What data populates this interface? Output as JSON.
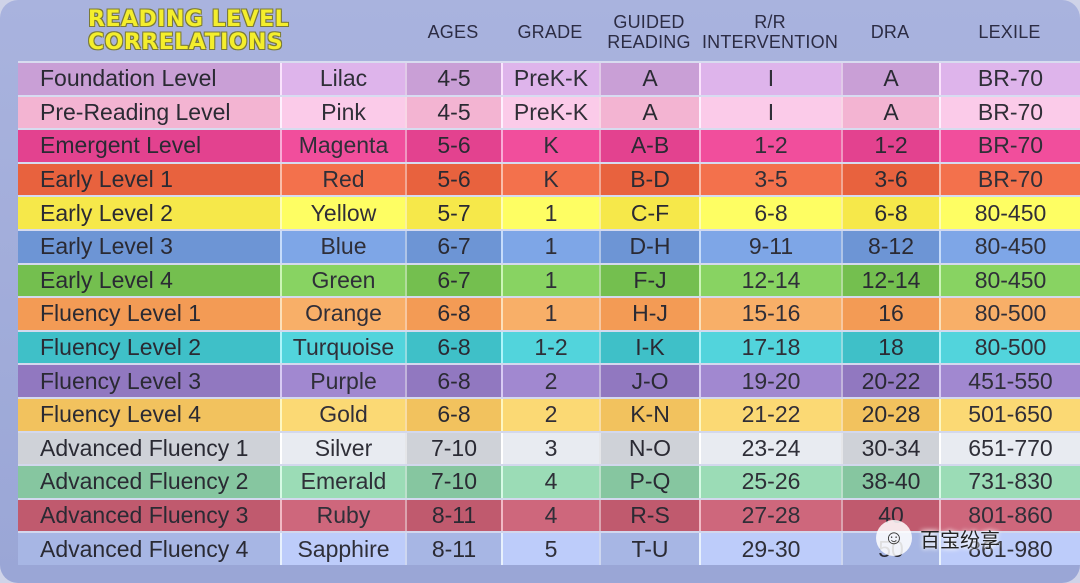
{
  "title": {
    "line1": "READING LEVEL",
    "line2": "CORRELATIONS"
  },
  "headers": {
    "ages": "AGES",
    "grade": "GRADE",
    "guided": [
      "GUIDED",
      "READING"
    ],
    "rr": [
      "R/R",
      "INTERVENTION"
    ],
    "dra": "DRA",
    "lexile": "LEXILE"
  },
  "rows": [
    {
      "level": "Foundation Level",
      "color": "Lilac",
      "ages": "4-5",
      "grade": "PreK-K",
      "guided": "A",
      "rr": "I",
      "dra": "A",
      "lexile": "BR-70",
      "bg": "#c99fd6"
    },
    {
      "level": "Pre-Reading Level",
      "color": "Pink",
      "ages": "4-5",
      "grade": "PreK-K",
      "guided": "A",
      "rr": "I",
      "dra": "A",
      "lexile": "BR-70",
      "bg": "#f3b4d2"
    },
    {
      "level": "Emergent Level",
      "color": "Magenta",
      "ages": "5-6",
      "grade": "K",
      "guided": "A-B",
      "rr": "1-2",
      "dra": "1-2",
      "lexile": "BR-70",
      "bg": "#e3428f"
    },
    {
      "level": "Early Level 1",
      "color": "Red",
      "ages": "5-6",
      "grade": "K",
      "guided": "B-D",
      "rr": "3-5",
      "dra": "3-6",
      "lexile": "BR-70",
      "bg": "#e8623e"
    },
    {
      "level": "Early Level 2",
      "color": "Yellow",
      "ages": "5-7",
      "grade": "1",
      "guided": "C-F",
      "rr": "6-8",
      "dra": "6-8",
      "lexile": "80-450",
      "bg": "#f6e84a"
    },
    {
      "level": "Early Level 3",
      "color": "Blue",
      "ages": "6-7",
      "grade": "1",
      "guided": "D-H",
      "rr": "9-11",
      "dra": "8-12",
      "lexile": "80-450",
      "bg": "#6d95d5"
    },
    {
      "level": "Early Level 4",
      "color": "Green",
      "ages": "6-7",
      "grade": "1",
      "guided": "F-J",
      "rr": "12-14",
      "dra": "12-14",
      "lexile": "80-450",
      "bg": "#74bf4f"
    },
    {
      "level": "Fluency Level 1",
      "color": "Orange",
      "ages": "6-8",
      "grade": "1",
      "guided": "H-J",
      "rr": "15-16",
      "dra": "16",
      "lexile": "80-500",
      "bg": "#f39b55"
    },
    {
      "level": "Fluency Level 2",
      "color": "Turquoise",
      "ages": "6-8",
      "grade": "1-2",
      "guided": "I-K",
      "rr": "17-18",
      "dra": "18",
      "lexile": "80-500",
      "bg": "#3fc0c8"
    },
    {
      "level": "Fluency Level 3",
      "color": "Purple",
      "ages": "6-8",
      "grade": "2",
      "guided": "J-O",
      "rr": "19-20",
      "dra": "20-22",
      "lexile": "451-550",
      "bg": "#9178c0"
    },
    {
      "level": "Fluency Level 4",
      "color": "Gold",
      "ages": "6-8",
      "grade": "2",
      "guided": "K-N",
      "rr": "21-22",
      "dra": "20-28",
      "lexile": "501-650",
      "bg": "#f2c25e"
    },
    {
      "level": "Advanced Fluency 1",
      "color": "Silver",
      "ages": "7-10",
      "grade": "3",
      "guided": "N-O",
      "rr": "23-24",
      "dra": "30-34",
      "lexile": "651-770",
      "bg": "#cfd2d8"
    },
    {
      "level": "Advanced Fluency 2",
      "color": "Emerald",
      "ages": "7-10",
      "grade": "4",
      "guided": "P-Q",
      "rr": "25-26",
      "dra": "38-40",
      "lexile": "731-830",
      "bg": "#86c6a0"
    },
    {
      "level": "Advanced Fluency 3",
      "color": "Ruby",
      "ages": "8-11",
      "grade": "4",
      "guided": "R-S",
      "rr": "27-28",
      "dra": "40",
      "lexile": "801-860",
      "bg": "#c05a6e"
    },
    {
      "level": "Advanced Fluency 4",
      "color": "Sapphire",
      "ages": "8-11",
      "grade": "5",
      "guided": "T-U",
      "rr": "29-30",
      "dra": "50",
      "lexile": "861-980",
      "bg": "#a7b6e4"
    }
  ],
  "watermark": {
    "icon": "wechat-icon",
    "text": "百宝纷享"
  }
}
